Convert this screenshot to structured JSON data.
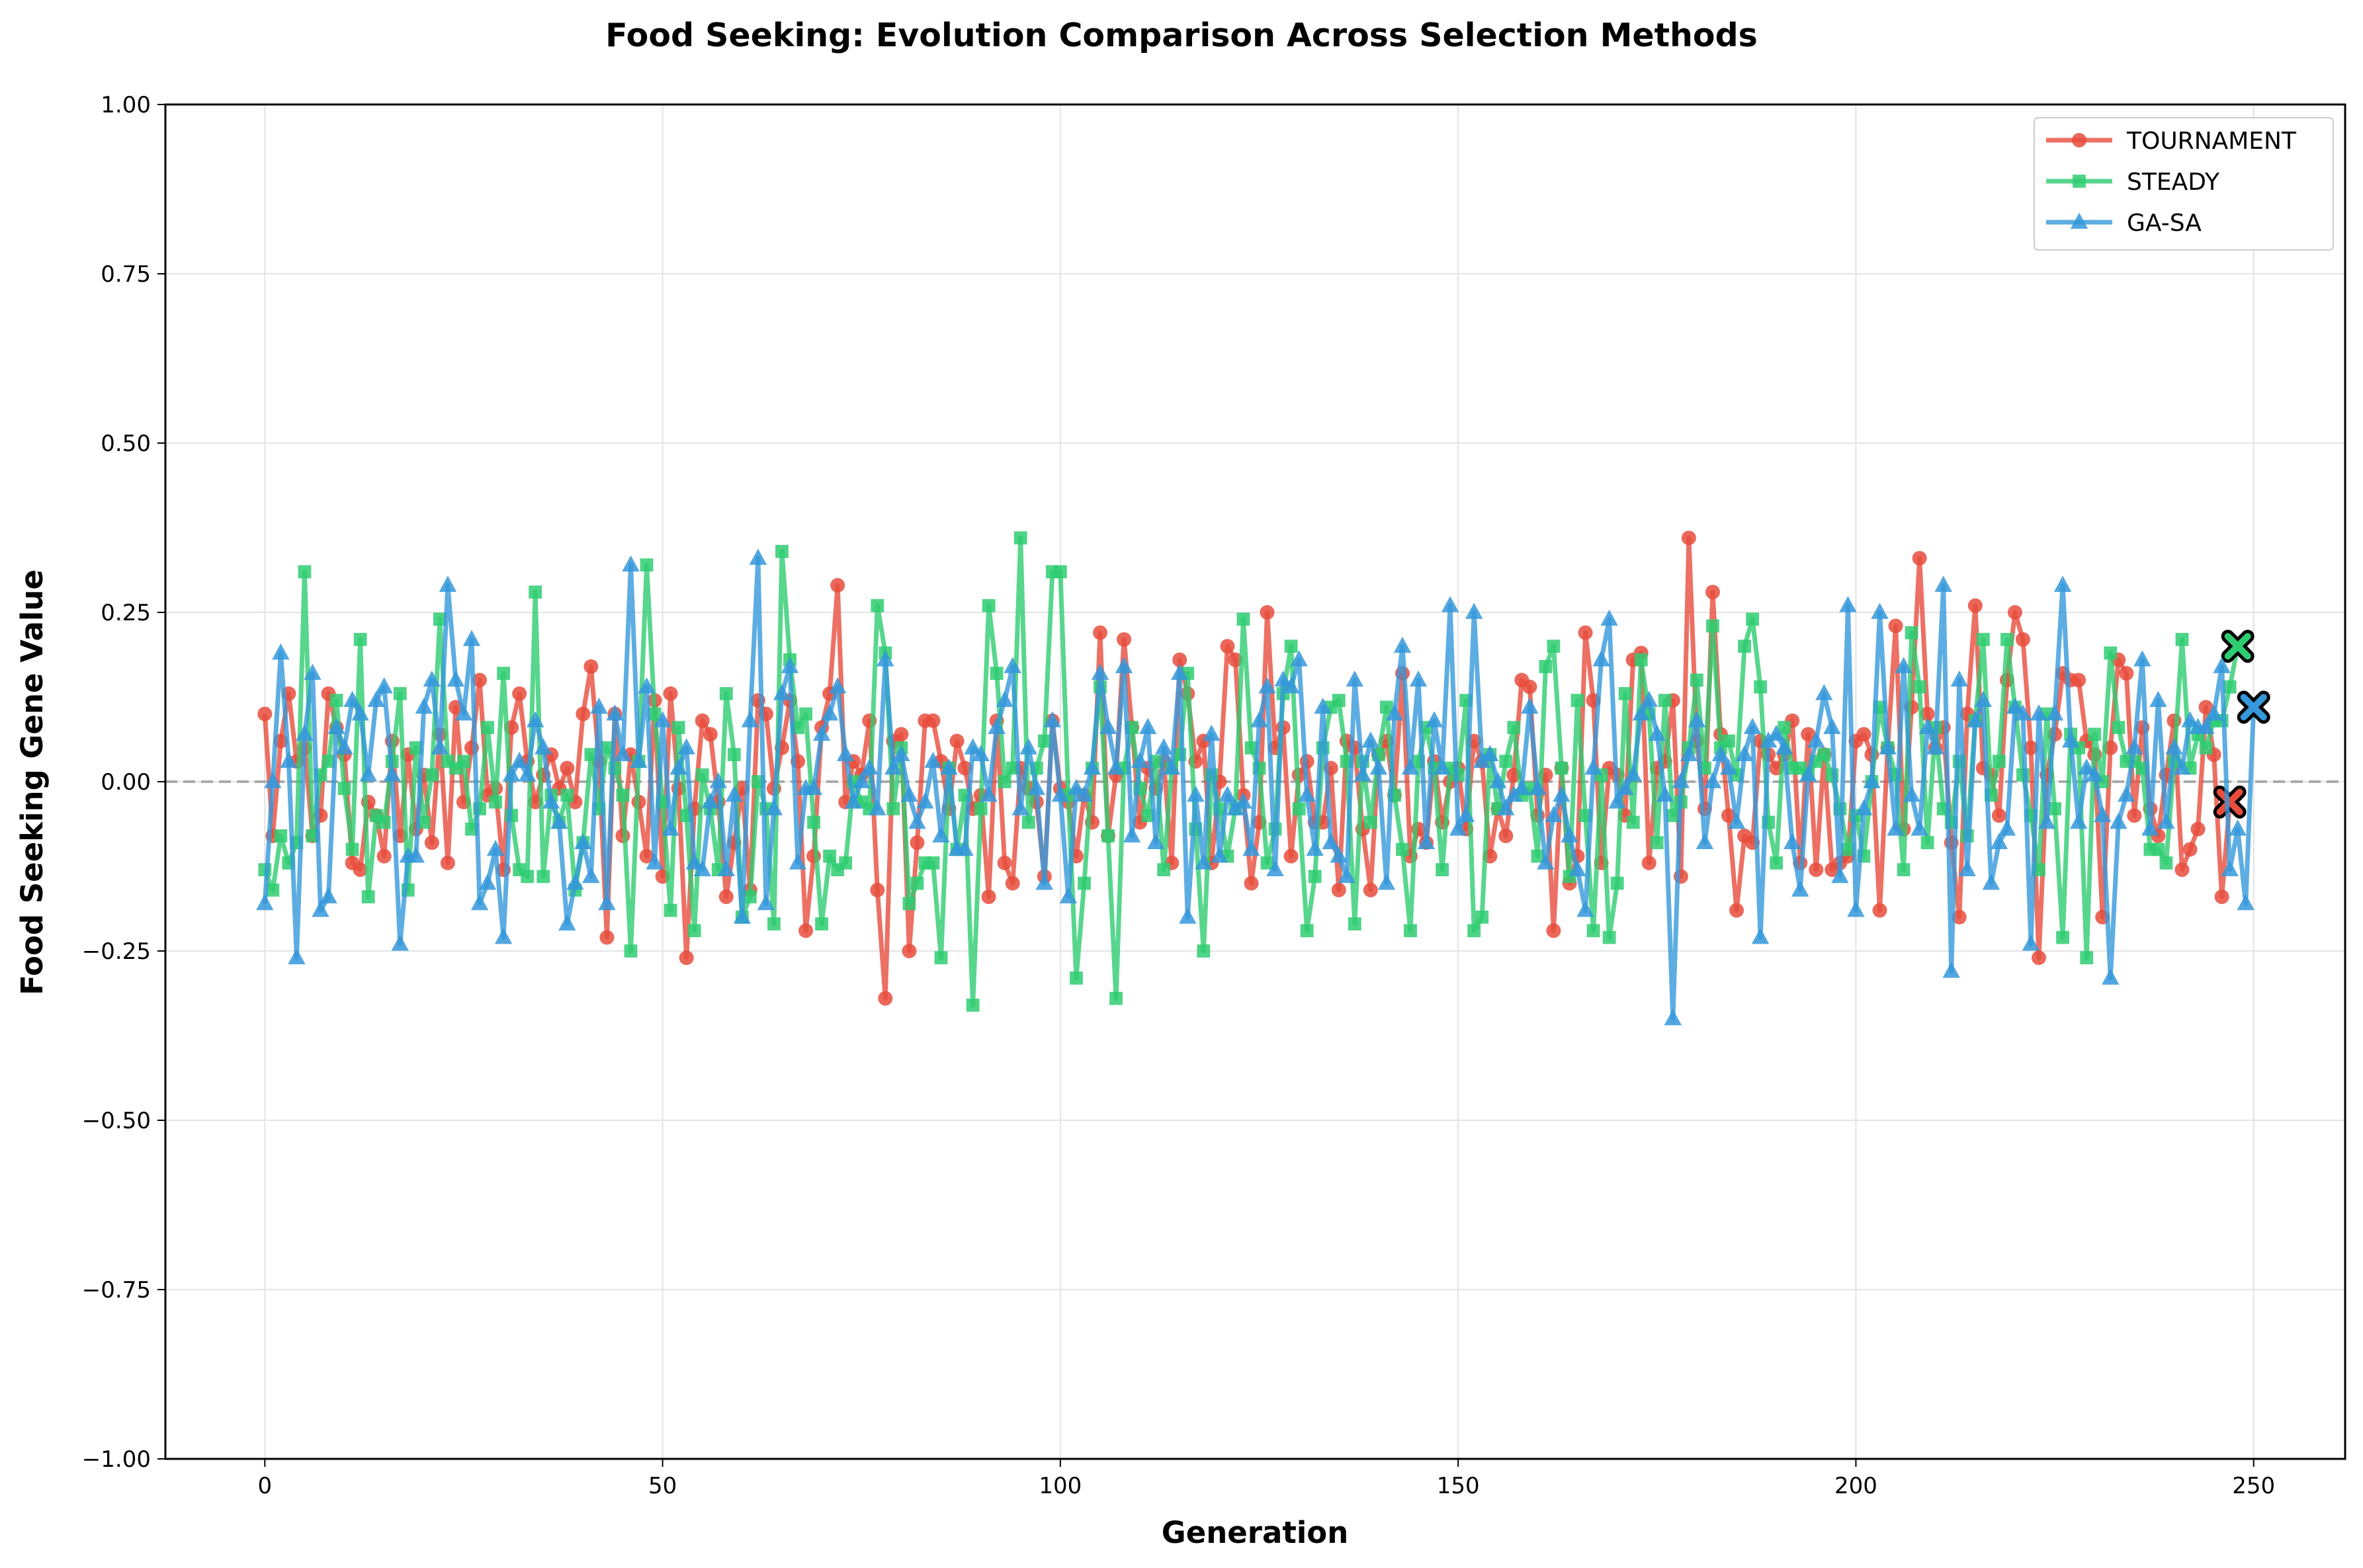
{
  "chart_data": {
    "type": "line",
    "title": "Food Seeking: Evolution Comparison Across Selection Methods",
    "xlabel": "Generation",
    "ylabel": "Food Seeking Gene Value",
    "xlim": [
      -12.5,
      261.5
    ],
    "ylim": [
      -1.0,
      1.0
    ],
    "xticks": [
      0,
      50,
      100,
      150,
      200,
      250
    ],
    "yticks": [
      -1.0,
      -0.75,
      -0.5,
      -0.25,
      0.0,
      0.25,
      0.5,
      0.75,
      1.0
    ],
    "xtick_labels": [
      "0",
      "50",
      "100",
      "150",
      "200",
      "250"
    ],
    "ytick_labels": [
      "−1.00",
      "−0.75",
      "−0.50",
      "−0.25",
      "0.00",
      "0.25",
      "0.50",
      "0.75",
      "1.00"
    ],
    "grid": true,
    "reference_line": {
      "y": 0.0,
      "style": "dashed",
      "color": "#aaaaaa"
    },
    "legend_position": "top-right",
    "series": [
      {
        "name": "TOURNAMENT",
        "color": "#e74c3c",
        "marker": "circle",
        "values": [
          0.1,
          -0.08,
          0.06,
          0.13,
          0.03,
          0.05,
          -0.08,
          -0.05,
          0.13,
          0.08,
          0.04,
          -0.12,
          -0.13,
          -0.03,
          -0.05,
          -0.11,
          0.06,
          -0.08,
          0.04,
          -0.07,
          0.01,
          -0.09,
          0.07,
          -0.12,
          0.11,
          -0.03,
          0.05,
          0.15,
          -0.02,
          -0.01,
          -0.13,
          0.08,
          0.13,
          0.03,
          -0.03,
          0.01,
          0.04,
          -0.01,
          0.02,
          -0.03,
          0.1,
          0.17,
          0.03,
          -0.23,
          0.1,
          -0.08,
          0.04,
          -0.03,
          -0.11,
          0.12,
          -0.14,
          0.13,
          -0.01,
          -0.26,
          -0.04,
          0.09,
          0.07,
          -0.03,
          -0.17,
          -0.09,
          -0.01,
          -0.16,
          0.12,
          0.1,
          -0.01,
          0.05,
          0.12,
          0.03,
          -0.22,
          -0.11,
          0.08,
          0.13,
          0.29,
          -0.03,
          0.03,
          0.01,
          0.09,
          -0.16,
          -0.32,
          0.06,
          0.07,
          -0.25,
          -0.09,
          0.09,
          0.09,
          0.03,
          -0.04,
          0.06,
          0.02,
          -0.04,
          -0.02,
          -0.17,
          0.09,
          -0.12,
          -0.15,
          0.02,
          -0.01,
          -0.03,
          -0.14,
          0.09,
          -0.01,
          -0.03,
          -0.11,
          -0.02,
          -0.06,
          0.22,
          -0.08,
          0.01,
          0.21,
          0.08,
          -0.06,
          0.02,
          -0.01,
          0.03,
          -0.12,
          0.18,
          0.13,
          0.03,
          0.06,
          -0.12,
          0.0,
          0.2,
          0.18,
          -0.02,
          -0.15,
          -0.06,
          0.25,
          0.05,
          0.08,
          -0.11,
          0.01,
          0.03,
          -0.06,
          -0.06,
          0.02,
          -0.16,
          0.06,
          0.05,
          -0.07,
          -0.16,
          0.04,
          0.06,
          -0.02,
          0.16,
          -0.11,
          -0.07,
          -0.09,
          0.03,
          -0.06,
          0.0,
          0.02,
          -0.07,
          0.06,
          0.03,
          -0.11,
          -0.04,
          -0.08,
          0.01,
          0.15,
          0.14,
          -0.05,
          0.01,
          -0.22,
          0.02,
          -0.15,
          -0.11,
          0.22,
          0.12,
          -0.12,
          0.02,
          0.01,
          -0.05,
          0.18,
          0.19,
          -0.12,
          0.02,
          0.03,
          0.12,
          -0.14,
          0.36,
          0.06,
          -0.04,
          0.28,
          0.07,
          -0.05,
          -0.19,
          -0.08,
          -0.09,
          0.06,
          0.04,
          0.02,
          0.04,
          0.09,
          -0.12,
          0.07,
          -0.13,
          0.04,
          -0.13,
          -0.12,
          -0.11,
          0.06,
          0.07,
          0.04,
          -0.19,
          0.05,
          0.23,
          -0.07,
          0.11,
          0.33,
          0.1,
          0.05,
          0.08,
          -0.09,
          -0.2,
          0.1,
          0.26,
          0.02,
          0.01,
          -0.05,
          0.15,
          0.25,
          0.21,
          0.05,
          -0.26,
          0.01,
          0.07,
          0.16,
          0.15,
          0.15,
          0.06,
          0.04,
          -0.2,
          0.05,
          0.18,
          0.16,
          -0.05,
          0.08,
          -0.04,
          -0.08,
          0.01,
          0.09,
          -0.13,
          -0.1,
          -0.07,
          0.11,
          0.04,
          -0.17,
          -0.03
        ]
      },
      {
        "name": "STEADY",
        "color": "#2ecc71",
        "marker": "square",
        "values": [
          -0.13,
          -0.16,
          -0.08,
          -0.12,
          -0.09,
          0.31,
          -0.08,
          0.01,
          0.03,
          0.12,
          -0.01,
          -0.1,
          0.21,
          -0.17,
          -0.05,
          -0.06,
          0.03,
          0.13,
          -0.16,
          0.05,
          -0.06,
          0.01,
          0.24,
          0.03,
          0.02,
          0.03,
          -0.07,
          -0.04,
          0.08,
          -0.03,
          0.16,
          -0.05,
          -0.13,
          -0.14,
          0.28,
          -0.14,
          -0.02,
          -0.06,
          -0.02,
          -0.16,
          -0.09,
          0.04,
          -0.04,
          0.05,
          0.02,
          -0.02,
          -0.25,
          0.03,
          0.32,
          0.1,
          -0.03,
          -0.19,
          0.08,
          -0.05,
          -0.22,
          0.01,
          -0.04,
          -0.13,
          0.13,
          0.04,
          -0.2,
          -0.17,
          0.0,
          -0.04,
          -0.21,
          0.34,
          0.18,
          0.08,
          0.1,
          -0.06,
          -0.21,
          -0.11,
          -0.13,
          -0.12,
          0.0,
          -0.03,
          -0.04,
          0.26,
          0.19,
          -0.04,
          0.05,
          -0.18,
          -0.15,
          -0.12,
          -0.12,
          -0.26,
          0.02,
          -0.1,
          -0.02,
          -0.33,
          -0.04,
          0.26,
          0.16,
          0.0,
          0.02,
          0.36,
          -0.06,
          0.02,
          0.06,
          0.31,
          0.31,
          -0.02,
          -0.29,
          -0.15,
          0.02,
          0.14,
          -0.08,
          -0.32,
          0.02,
          0.08,
          -0.01,
          -0.05,
          0.03,
          -0.13,
          0.02,
          0.04,
          0.16,
          -0.07,
          -0.25,
          0.01,
          -0.04,
          -0.11,
          -0.04,
          0.24,
          0.05,
          0.02,
          -0.12,
          -0.07,
          0.13,
          0.2,
          -0.04,
          -0.22,
          -0.14,
          0.05,
          0.11,
          0.12,
          0.03,
          -0.21,
          0.03,
          -0.06,
          0.04,
          0.11,
          -0.02,
          -0.1,
          -0.22,
          0.03,
          0.08,
          0.02,
          -0.13,
          0.02,
          0.01,
          0.12,
          -0.22,
          -0.2,
          0.04,
          -0.04,
          0.03,
          0.08,
          -0.02,
          -0.01,
          -0.11,
          0.17,
          0.2,
          0.02,
          -0.14,
          0.12,
          -0.05,
          -0.22,
          0.01,
          -0.23,
          -0.15,
          0.13,
          -0.06,
          0.18,
          0.1,
          -0.09,
          0.12,
          -0.05,
          -0.03,
          0.05,
          0.15,
          0.02,
          0.23,
          0.05,
          0.06,
          0.01,
          0.2,
          0.24,
          0.14,
          -0.06,
          -0.12,
          0.08,
          0.02,
          0.02,
          0.01,
          0.03,
          0.04,
          0.01,
          -0.04,
          -0.1,
          -0.05,
          -0.11,
          0.0,
          0.11,
          0.05,
          0.01,
          -0.13,
          0.22,
          0.14,
          -0.09,
          0.08,
          -0.04,
          -0.06,
          0.03,
          -0.08,
          0.09,
          0.21,
          -0.02,
          0.03,
          0.21,
          0.11,
          0.01,
          -0.05,
          -0.13,
          0.1,
          -0.04,
          -0.23,
          0.07,
          0.05,
          -0.26,
          0.07,
          0.0,
          0.19,
          0.08,
          0.03,
          0.03,
          0.02,
          -0.1,
          -0.1,
          -0.12,
          0.03,
          0.21,
          0.02,
          0.07,
          0.05,
          0.09,
          0.09,
          0.14,
          0.2
        ]
      },
      {
        "name": "GA-SA",
        "color": "#3498db",
        "marker": "triangle",
        "values": [
          -0.18,
          0.0,
          0.19,
          0.03,
          -0.26,
          0.07,
          0.16,
          -0.19,
          -0.17,
          0.08,
          0.05,
          0.12,
          0.1,
          0.01,
          0.12,
          0.14,
          0.01,
          -0.24,
          -0.11,
          -0.11,
          0.11,
          0.15,
          0.05,
          0.29,
          0.15,
          0.1,
          0.21,
          -0.18,
          -0.15,
          -0.1,
          -0.23,
          0.01,
          0.03,
          0.01,
          0.09,
          0.05,
          -0.03,
          -0.06,
          -0.21,
          -0.15,
          -0.09,
          -0.14,
          0.11,
          -0.18,
          0.1,
          0.04,
          0.32,
          0.03,
          0.14,
          -0.12,
          0.09,
          -0.07,
          0.02,
          0.05,
          -0.12,
          -0.13,
          -0.03,
          0.0,
          -0.13,
          -0.02,
          -0.2,
          0.09,
          0.33,
          -0.18,
          -0.04,
          0.13,
          0.17,
          -0.12,
          -0.01,
          -0.01,
          0.07,
          0.1,
          0.14,
          0.04,
          -0.03,
          0.0,
          0.02,
          -0.04,
          0.18,
          0.02,
          0.04,
          -0.02,
          -0.06,
          -0.03,
          0.03,
          -0.08,
          0.02,
          -0.1,
          -0.1,
          0.05,
          0.04,
          -0.02,
          0.08,
          0.12,
          0.17,
          -0.04,
          0.05,
          -0.01,
          -0.15,
          0.09,
          -0.02,
          -0.17,
          -0.01,
          -0.02,
          0.02,
          0.16,
          0.08,
          0.02,
          0.17,
          -0.08,
          0.03,
          0.08,
          -0.09,
          0.05,
          0.02,
          0.16,
          -0.2,
          -0.02,
          -0.12,
          0.07,
          -0.11,
          -0.02,
          -0.04,
          -0.03,
          -0.1,
          0.09,
          0.14,
          -0.13,
          0.15,
          0.14,
          0.18,
          -0.02,
          -0.1,
          0.11,
          -0.09,
          -0.11,
          -0.14,
          0.15,
          0.01,
          0.06,
          0.02,
          -0.15,
          0.1,
          0.2,
          0.02,
          0.15,
          -0.09,
          0.09,
          0.02,
          0.26,
          -0.07,
          -0.05,
          0.25,
          0.03,
          0.04,
          0.0,
          -0.04,
          -0.02,
          -0.01,
          0.11,
          -0.01,
          -0.12,
          -0.05,
          -0.02,
          -0.08,
          -0.13,
          -0.19,
          0.02,
          0.18,
          0.24,
          -0.03,
          -0.01,
          0.01,
          0.1,
          0.12,
          0.07,
          -0.02,
          -0.35,
          0.0,
          0.04,
          0.09,
          -0.09,
          0.0,
          0.04,
          0.02,
          -0.06,
          0.04,
          0.08,
          -0.23,
          0.06,
          0.07,
          0.05,
          -0.09,
          -0.16,
          0.01,
          0.06,
          0.13,
          0.08,
          -0.14,
          0.26,
          -0.19,
          -0.04,
          0.0,
          0.25,
          0.05,
          -0.07,
          0.17,
          -0.02,
          -0.07,
          0.08,
          0.05,
          0.29,
          -0.28,
          0.15,
          -0.13,
          0.09,
          0.12,
          -0.15,
          -0.09,
          -0.07,
          0.11,
          0.1,
          -0.24,
          0.1,
          -0.06,
          0.1,
          0.29,
          0.06,
          -0.06,
          0.02,
          0.01,
          -0.05,
          -0.29,
          -0.06,
          -0.02,
          0.05,
          0.18,
          -0.07,
          0.12,
          -0.06,
          0.05,
          0.02,
          0.09,
          0.08,
          0.08,
          0.1,
          0.17,
          -0.13,
          -0.07,
          -0.18,
          0.11
        ]
      }
    ]
  }
}
